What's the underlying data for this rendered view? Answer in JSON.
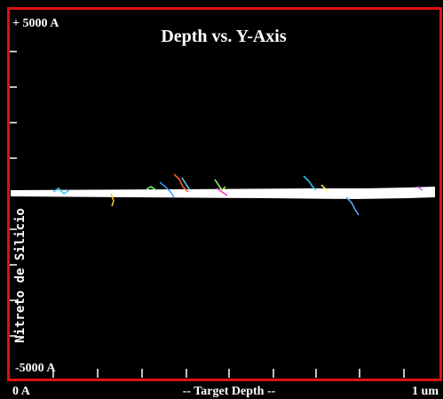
{
  "plot": {
    "title": "Depth vs. Y-Axis",
    "y_top_label": "+ 5000 A",
    "y_bottom_label": "-5000 A",
    "material_label": "Nitreto de Silicio"
  },
  "footer": {
    "left": "0 A",
    "center": "-- Target Depth --",
    "right": "1 um"
  }
}
